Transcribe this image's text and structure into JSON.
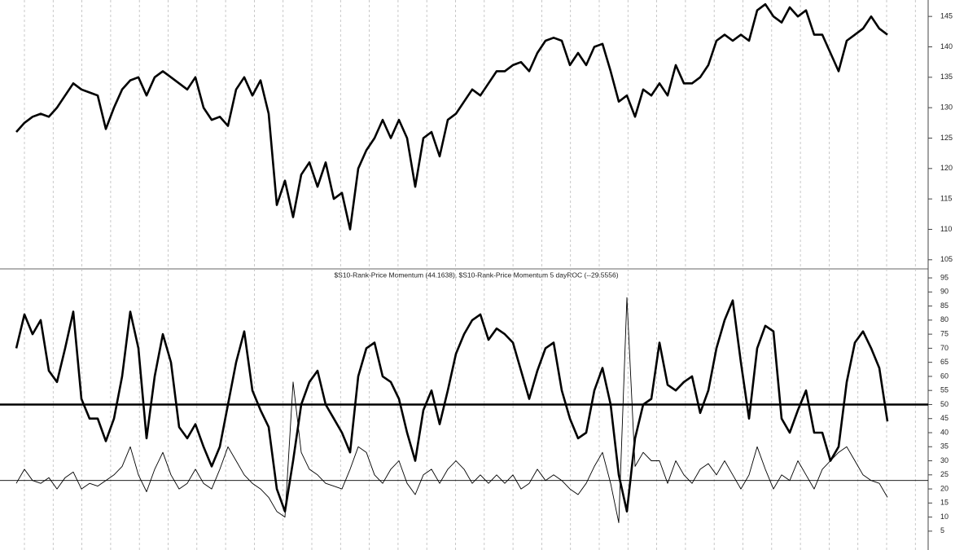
{
  "chart_data": [
    {
      "type": "line",
      "series": [
        {
          "color": "#000000",
          "values": [
            126,
            127.5,
            128.5,
            129,
            128.5,
            130,
            132,
            134,
            133,
            132.5,
            132,
            126.5,
            130,
            133,
            134.5,
            135,
            132,
            135,
            136,
            135,
            134,
            133,
            135,
            130,
            128,
            128.5,
            127,
            133,
            135,
            132,
            134.5,
            129,
            114,
            118,
            112,
            119,
            121,
            117,
            121,
            115,
            116,
            110,
            120,
            123,
            125,
            128,
            125,
            128,
            125,
            117,
            125,
            126,
            122,
            128,
            129,
            131,
            133,
            132,
            134,
            136,
            136,
            137,
            137.5,
            136,
            139,
            141,
            141.5,
            141,
            137,
            139,
            137,
            140,
            140.5,
            136,
            131,
            132,
            128.5,
            133,
            132,
            134,
            132,
            137,
            134,
            134,
            135,
            137,
            141,
            142,
            141,
            142,
            141,
            146,
            147,
            145,
            144,
            146.5,
            145,
            146,
            142,
            142,
            139,
            136,
            141,
            142,
            143,
            145,
            143,
            142
          ]
        }
      ],
      "ylim": [
        103.5,
        147.7
      ],
      "yticks": [
        105,
        110,
        115,
        120,
        125,
        130,
        135,
        140,
        145
      ],
      "grid": true
    },
    {
      "type": "line",
      "title": "$S10-Rank-Price Momentum (44.1638), $S10-Rank-Price Momentum 5 dayROC (--29.5556)",
      "series": [
        {
          "color": "#000000",
          "width": 2.6,
          "values": [
            70,
            82,
            75,
            80,
            62,
            58,
            70,
            83,
            52,
            45,
            45,
            37,
            45,
            60,
            83,
            70,
            38,
            60,
            75,
            65,
            42,
            38,
            43,
            35,
            28,
            35,
            50,
            65,
            76,
            55,
            48,
            42,
            20,
            12,
            30,
            50,
            58,
            62,
            50,
            45,
            40,
            33,
            60,
            70,
            72,
            60,
            58,
            52,
            40,
            30,
            48,
            55,
            43,
            55,
            68,
            75,
            80,
            82,
            73,
            77,
            75,
            72,
            62,
            52,
            62,
            70,
            72,
            55,
            45,
            38,
            40,
            55,
            63,
            50,
            25,
            12,
            38,
            50,
            52,
            72,
            57,
            55,
            58,
            60,
            47,
            55,
            70,
            80,
            87,
            65,
            45,
            70,
            78,
            76,
            45,
            40,
            48,
            55,
            40,
            40,
            30,
            35,
            58,
            72,
            76,
            70,
            63,
            44
          ]
        },
        {
          "color": "#000000",
          "width": 0.9,
          "values": [
            22,
            27,
            23,
            22,
            24,
            20,
            24,
            26,
            20,
            22,
            21,
            23,
            25,
            28,
            35,
            25,
            19,
            27,
            33,
            25,
            20,
            22,
            27,
            22,
            20,
            27,
            35,
            30,
            25,
            22,
            20,
            17,
            12,
            10,
            58,
            33,
            27,
            25,
            22,
            21,
            20,
            27,
            35,
            33,
            25,
            22,
            27,
            30,
            22,
            18,
            25,
            27,
            22,
            27,
            30,
            27,
            22,
            25,
            22,
            25,
            22,
            25,
            20,
            22,
            27,
            23,
            25,
            23,
            20,
            18,
            22,
            28,
            33,
            22,
            8,
            88,
            28,
            33,
            30,
            30,
            22,
            30,
            25,
            22,
            27,
            29,
            25,
            30,
            25,
            20,
            25,
            35,
            27,
            20,
            25,
            23,
            30,
            25,
            20,
            27,
            30,
            33,
            35,
            30,
            25,
            23,
            22,
            17
          ]
        }
      ],
      "hlines": [
        50,
        23
      ],
      "ylim": [
        -1.7,
        98.2
      ],
      "yticks": [
        5,
        10,
        15,
        20,
        25,
        30,
        35,
        40,
        45,
        50,
        55,
        60,
        65,
        70,
        75,
        80,
        85,
        90,
        95
      ],
      "grid": true
    }
  ]
}
